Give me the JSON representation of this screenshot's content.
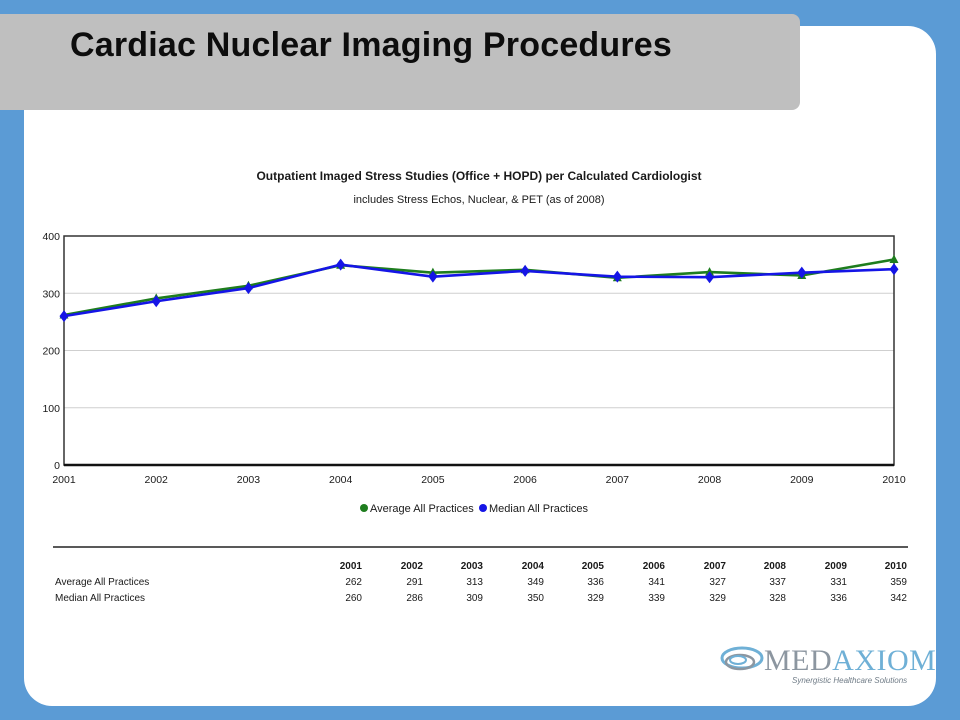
{
  "slide": {
    "title": "Cardiac Nuclear Imaging Procedures"
  },
  "chart_data": {
    "type": "line",
    "title": "Outpatient Imaged Stress Studies (Office + HOPD) per Calculated Cardiologist",
    "subtitle": "includes Stress Echos, Nuclear, & PET (as of 2008)",
    "x": [
      "2001",
      "2002",
      "2003",
      "2004",
      "2005",
      "2006",
      "2007",
      "2008",
      "2009",
      "2010"
    ],
    "ylim": [
      0,
      400
    ],
    "yticks": [
      0,
      100,
      200,
      300,
      400
    ],
    "grid": true,
    "legend_position": "bottom",
    "series": [
      {
        "name": "Average All Practices",
        "color": "#1e7d1e",
        "values": [
          262,
          291,
          313,
          349,
          336,
          341,
          327,
          337,
          331,
          359
        ]
      },
      {
        "name": "Median All Practices",
        "color": "#1515e6",
        "values": [
          260,
          286,
          309,
          350,
          329,
          339,
          329,
          328,
          336,
          342
        ]
      }
    ]
  },
  "logo": {
    "brand_part1": "MED",
    "brand_part2": "AXIOM",
    "tagline": "Synergistic Healthcare Solutions",
    "icon": "medaxiom-swirl-icon"
  }
}
